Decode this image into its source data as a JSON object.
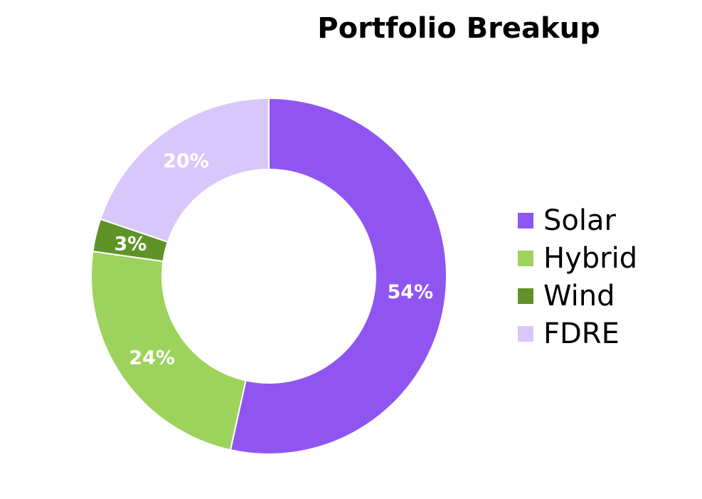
{
  "chart_data": {
    "type": "donut",
    "title": "Portfolio Breakup",
    "categories": [
      "Solar",
      "Hybrid",
      "Wind",
      "FDRE"
    ],
    "values": [
      54,
      24,
      3,
      20
    ],
    "value_labels": [
      "54%",
      "24%",
      "3%",
      "20%"
    ],
    "colors": [
      "#9055f0",
      "#9dd35c",
      "#5f9327",
      "#d8c7fa"
    ],
    "legend": "right"
  }
}
